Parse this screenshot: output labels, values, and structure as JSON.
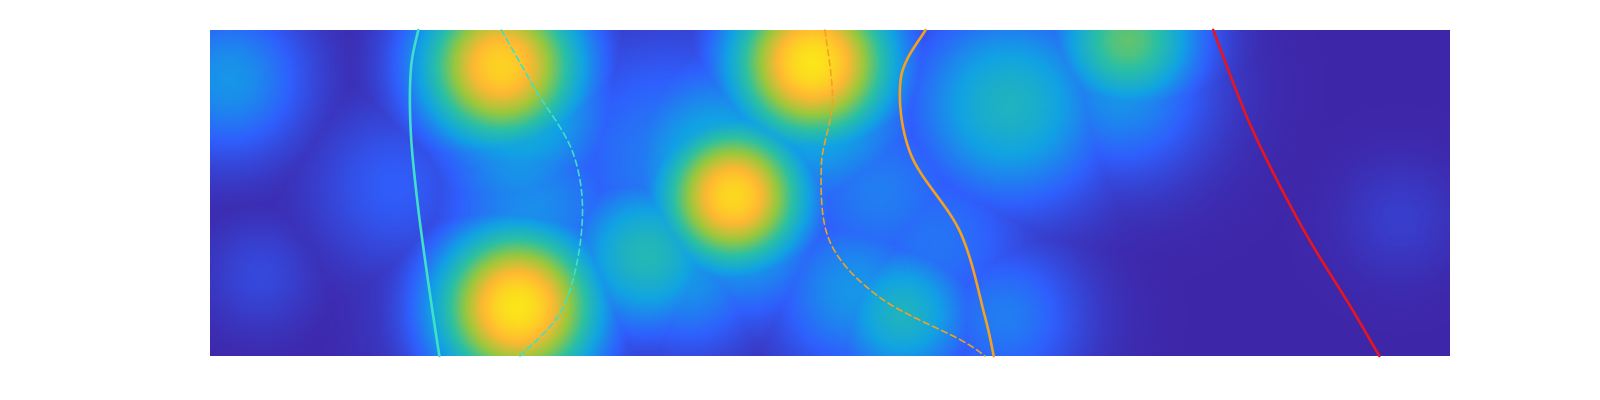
{
  "chart_data": {
    "type": "heatmap",
    "title": "",
    "xlabel": "",
    "ylabel": "",
    "xlim": [
      0,
      1
    ],
    "ylim": [
      0,
      1
    ],
    "grid": false,
    "axes_visible": false,
    "colormap": "parula",
    "colormap_stops": [
      "#3e26a8",
      "#2f5ffd",
      "#11a3e3",
      "#2bc0a3",
      "#97c83e",
      "#ffb832",
      "#fbe51a"
    ],
    "blobs": [
      {
        "x": 0.015,
        "y": 0.85,
        "sigma": 0.055,
        "peak": 0.3
      },
      {
        "x": 0.15,
        "y": 0.52,
        "sigma": 0.06,
        "peak": 0.16
      },
      {
        "x": 0.04,
        "y": 0.25,
        "sigma": 0.04,
        "peak": 0.1
      },
      {
        "x": 0.235,
        "y": 0.89,
        "sigma": 0.055,
        "peak": 0.93
      },
      {
        "x": 0.25,
        "y": 0.75,
        "sigma": 0.065,
        "peak": 0.4
      },
      {
        "x": 0.25,
        "y": 0.6,
        "sigma": 0.06,
        "peak": 0.3
      },
      {
        "x": 0.26,
        "y": 0.45,
        "sigma": 0.07,
        "peak": 0.28
      },
      {
        "x": 0.248,
        "y": 0.15,
        "sigma": 0.055,
        "peak": 1.0
      },
      {
        "x": 0.26,
        "y": 0.2,
        "sigma": 0.08,
        "peak": 0.3
      },
      {
        "x": 0.352,
        "y": 0.31,
        "sigma": 0.055,
        "peak": 0.45
      },
      {
        "x": 0.385,
        "y": 0.25,
        "sigma": 0.055,
        "peak": 0.3
      },
      {
        "x": 0.37,
        "y": 0.6,
        "sigma": 0.09,
        "peak": 0.24
      },
      {
        "x": 0.422,
        "y": 0.49,
        "sigma": 0.05,
        "peak": 0.95
      },
      {
        "x": 0.41,
        "y": 0.59,
        "sigma": 0.07,
        "peak": 0.4
      },
      {
        "x": 0.43,
        "y": 0.37,
        "sigma": 0.06,
        "peak": 0.35
      },
      {
        "x": 0.486,
        "y": 0.9,
        "sigma": 0.055,
        "peak": 1.0
      },
      {
        "x": 0.49,
        "y": 0.75,
        "sigma": 0.07,
        "peak": 0.38
      },
      {
        "x": 0.54,
        "y": 0.5,
        "sigma": 0.07,
        "peak": 0.24
      },
      {
        "x": 0.52,
        "y": 0.2,
        "sigma": 0.06,
        "peak": 0.3
      },
      {
        "x": 0.558,
        "y": 0.13,
        "sigma": 0.05,
        "peak": 0.42
      },
      {
        "x": 0.585,
        "y": 0.35,
        "sigma": 0.07,
        "peak": 0.22
      },
      {
        "x": 0.645,
        "y": 0.77,
        "sigma": 0.07,
        "peak": 0.42
      },
      {
        "x": 0.62,
        "y": 0.6,
        "sigma": 0.05,
        "peak": 0.1
      },
      {
        "x": 0.64,
        "y": 0.12,
        "sigma": 0.055,
        "peak": 0.24
      },
      {
        "x": 0.715,
        "y": 0.62,
        "sigma": 0.035,
        "peak": 0.1
      },
      {
        "x": 0.74,
        "y": 0.97,
        "sigma": 0.05,
        "peak": 0.58
      },
      {
        "x": 0.735,
        "y": 0.82,
        "sigma": 0.06,
        "peak": 0.3
      },
      {
        "x": 0.96,
        "y": 0.42,
        "sigma": 0.04,
        "peak": 0.07
      }
    ],
    "series": [
      {
        "color": "#40e0c8",
        "line_style": "solid",
        "points": [
          [
            0.168,
            1.0
          ],
          [
            0.162,
            0.88
          ],
          [
            0.162,
            0.68
          ],
          [
            0.168,
            0.45
          ],
          [
            0.177,
            0.2
          ],
          [
            0.185,
            0.0
          ]
        ]
      },
      {
        "color": "#40e0c8",
        "line_style": "dashed",
        "points": [
          [
            0.235,
            1.0
          ],
          [
            0.262,
            0.82
          ],
          [
            0.293,
            0.62
          ],
          [
            0.3,
            0.4
          ],
          [
            0.285,
            0.15
          ],
          [
            0.25,
            0.0
          ]
        ]
      },
      {
        "color": "#f4a020",
        "line_style": "dashed",
        "points": [
          [
            0.496,
            1.0
          ],
          [
            0.502,
            0.78
          ],
          [
            0.493,
            0.58
          ],
          [
            0.5,
            0.35
          ],
          [
            0.54,
            0.18
          ],
          [
            0.605,
            0.05
          ],
          [
            0.625,
            0.0
          ]
        ]
      },
      {
        "color": "#f4a020",
        "line_style": "solid",
        "points": [
          [
            0.577,
            1.0
          ],
          [
            0.557,
            0.85
          ],
          [
            0.565,
            0.62
          ],
          [
            0.605,
            0.38
          ],
          [
            0.625,
            0.12
          ],
          [
            0.632,
            0.0
          ]
        ]
      },
      {
        "color": "#e8151d",
        "line_style": "solid",
        "points": [
          [
            0.809,
            1.0
          ],
          [
            0.84,
            0.7
          ],
          [
            0.88,
            0.4
          ],
          [
            0.92,
            0.15
          ],
          [
            0.943,
            0.0
          ]
        ]
      }
    ]
  }
}
